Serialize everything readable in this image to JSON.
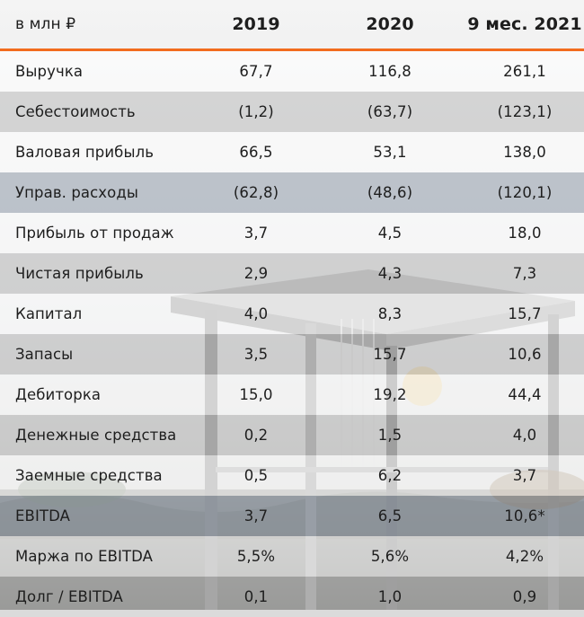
{
  "header": {
    "unit": "в млн ₽",
    "col_2019": "2019",
    "col_2020": "2020",
    "col_2021": "9 мес. 2021"
  },
  "colors": {
    "accent": "#f26c1e"
  },
  "rows": [
    {
      "label": "Выручка",
      "v2019": "67,7",
      "v2020": "116,8",
      "v2021": "261,1"
    },
    {
      "label": "Себестоимость",
      "v2019": "(1,2)",
      "v2020": "(63,7)",
      "v2021": "(123,1)"
    },
    {
      "label": "Валовая прибыль",
      "v2019": "66,5",
      "v2020": "53,1",
      "v2021": "138,0"
    },
    {
      "label": "Управ. расходы",
      "v2019": "(62,8)",
      "v2020": "(48,6)",
      "v2021": "(120,1)"
    },
    {
      "label": "Прибыль от продаж",
      "v2019": "3,7",
      "v2020": "4,5",
      "v2021": "18,0"
    },
    {
      "label": "Чистая прибыль",
      "v2019": "2,9",
      "v2020": "4,3",
      "v2021": "7,3"
    },
    {
      "label": "Капитал",
      "v2019": "4,0",
      "v2020": "8,3",
      "v2021": "15,7"
    },
    {
      "label": "Запасы",
      "v2019": "3,5",
      "v2020": "15,7",
      "v2021": "10,6"
    },
    {
      "label": "Дебиторка",
      "v2019": "15,0",
      "v2020": "19,2",
      "v2021": "44,4"
    },
    {
      "label": "Денежные средства",
      "v2019": "0,2",
      "v2020": "1,5",
      "v2021": "4,0"
    },
    {
      "label": "Заемные средства",
      "v2019": "0,5",
      "v2020": "6,2",
      "v2021": "3,7"
    },
    {
      "label": "EBITDA",
      "v2019": "3,7",
      "v2020": "6,5",
      "v2021": "10,6*"
    },
    {
      "label": "Маржа по EBITDA",
      "v2019": "5,5%",
      "v2020": "5,6%",
      "v2021": "4,2%"
    },
    {
      "label": "Долг / EBITDA",
      "v2019": "0,1",
      "v2020": "1,0",
      "v2021": "0,9"
    }
  ]
}
